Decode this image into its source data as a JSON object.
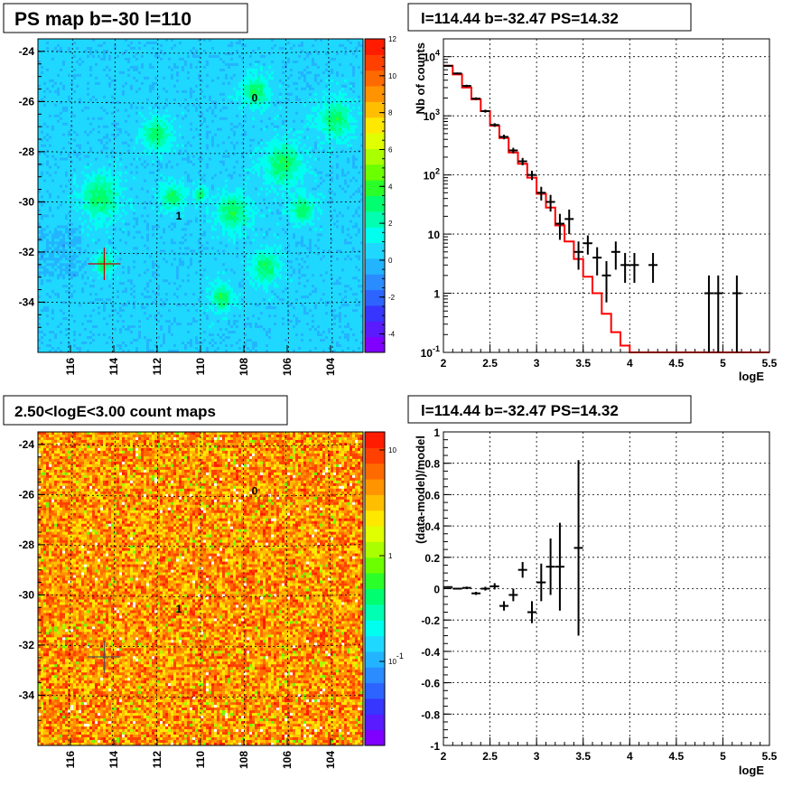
{
  "panels": {
    "tl_title": "PS map b=-30 l=110",
    "tr_title": "l=114.44 b=-32.47 PS=14.32",
    "bl_title": "2.50<logE<3.00 count maps",
    "br_title": "l=114.44 b=-32.47 PS=14.32"
  },
  "map_labels": [
    "0",
    "1"
  ],
  "colors": {
    "model_line": "#ff0000",
    "data": "#000000"
  },
  "chart_data": [
    {
      "type": "heatmap",
      "name_printed": "PS map b=-30 l=110",
      "x_ticks": [
        "116",
        "114",
        "112",
        "110",
        "108",
        "106",
        "104"
      ],
      "y_ticks": [
        "-24",
        "-26",
        "-28",
        "-30",
        "-32",
        "-34"
      ],
      "xlim": [
        117.5,
        102.5
      ],
      "ylim": [
        -36,
        -23.5
      ],
      "colorbar_ticks": [
        "12",
        "10",
        "8",
        "6",
        "4",
        "2",
        "0",
        "-2",
        "-4"
      ],
      "colorbar_range": [
        -5,
        12
      ],
      "source_marker": {
        "l": 114.44,
        "b": -32.47
      },
      "labels": [
        {
          "text": "0",
          "l": 107.5,
          "b": -26.0
        },
        {
          "text": "1",
          "l": 111.0,
          "b": -30.7
        }
      ],
      "grid": true
    },
    {
      "type": "line",
      "name_printed": "l=114.44 b=-32.47 PS=14.32",
      "xlabel": "logE",
      "ylabel": "Nb of counts",
      "xlim": [
        2,
        5.5
      ],
      "ylim": [
        0.1,
        20000
      ],
      "log_y": true,
      "x_ticks": [
        "2",
        "2.5",
        "3",
        "3.5",
        "4",
        "4.5",
        "5",
        "5.5"
      ],
      "y_ticks": [
        "10^4",
        "10^3",
        "10^2",
        "10",
        "1",
        "10^-1"
      ],
      "grid": true,
      "series": [
        {
          "kind": "step",
          "color": "#ff0000",
          "bin_edges": [
            2.0,
            2.1,
            2.2,
            2.3,
            2.4,
            2.5,
            2.6,
            2.7,
            2.8,
            2.9,
            3.0,
            3.1,
            3.2,
            3.3,
            3.4,
            3.5,
            3.6,
            3.7,
            3.8,
            3.9,
            4.0,
            5.5
          ],
          "values": [
            7000,
            5000,
            3000,
            1900,
            1200,
            680,
            420,
            240,
            155,
            90,
            48,
            28,
            14,
            7.5,
            3.8,
            1.9,
            1.0,
            0.45,
            0.22,
            0.13,
            0.1
          ]
        },
        {
          "kind": "points",
          "color": "#000000",
          "x": [
            2.05,
            2.15,
            2.25,
            2.35,
            2.45,
            2.55,
            2.65,
            2.75,
            2.85,
            2.95,
            3.05,
            3.15,
            3.25,
            3.35,
            3.45,
            3.55,
            3.65,
            3.75,
            3.85,
            3.95,
            4.05,
            4.25,
            4.85,
            4.95,
            5.15
          ],
          "y": [
            7000,
            5200,
            3200,
            1950,
            1200,
            700,
            440,
            260,
            170,
            100,
            50,
            35,
            15,
            18,
            5,
            7,
            4,
            2,
            5,
            3,
            3,
            3,
            1,
            1,
            1
          ],
          "y_low": [
            6800,
            5000,
            3050,
            1850,
            1130,
            650,
            400,
            232,
            146,
            82,
            37,
            24,
            8,
            10,
            2.5,
            4.5,
            2,
            0.7,
            2.5,
            1.5,
            1.5,
            1.5,
            0.1,
            0.1,
            0.1
          ],
          "y_high": [
            7200,
            5400,
            3350,
            2050,
            1270,
            750,
            480,
            288,
            194,
            118,
            63,
            46,
            22,
            26,
            7.5,
            9.5,
            6,
            3.5,
            7.5,
            4.8,
            4.8,
            4.8,
            2,
            2,
            2
          ]
        }
      ]
    },
    {
      "type": "heatmap",
      "name_printed": "2.50<logE<3.00 count maps",
      "x_ticks": [
        "116",
        "114",
        "112",
        "110",
        "108",
        "106",
        "104"
      ],
      "y_ticks": [
        "-24",
        "-26",
        "-28",
        "-30",
        "-32",
        "-34"
      ],
      "xlim": [
        117.5,
        102.5
      ],
      "ylim": [
        -36,
        -23.5
      ],
      "colorbar_ticks": [
        "10",
        "1",
        "10^-1"
      ],
      "colorbar_log": true,
      "source_marker": {
        "l": 114.44,
        "b": -32.47
      },
      "labels": [
        {
          "text": "0",
          "l": 107.5,
          "b": -26.0
        },
        {
          "text": "1",
          "l": 111.0,
          "b": -30.7
        }
      ],
      "grid": true
    },
    {
      "type": "scatter",
      "name_printed": "l=114.44 b=-32.47 PS=14.32",
      "xlabel": "logE",
      "ylabel": "(data-model)/model",
      "xlim": [
        2,
        5.5
      ],
      "ylim": [
        -1,
        1
      ],
      "x_ticks": [
        "2",
        "2.5",
        "3",
        "3.5",
        "4",
        "4.5",
        "5",
        "5.5"
      ],
      "y_ticks": [
        "1",
        "0.8",
        "0.6",
        "0.4",
        "0.2",
        "0",
        "-0.2",
        "-0.4",
        "-0.6",
        "-0.8",
        "-1"
      ],
      "grid": true,
      "series": [
        {
          "kind": "points",
          "color": "#000000",
          "x": [
            2.05,
            2.15,
            2.25,
            2.35,
            2.45,
            2.55,
            2.65,
            2.75,
            2.85,
            2.95,
            3.05,
            3.15,
            3.25,
            3.45
          ],
          "y": [
            0.01,
            0.0,
            0.005,
            -0.03,
            0.0,
            0.015,
            -0.11,
            -0.04,
            0.12,
            -0.15,
            0.04,
            0.14,
            0.14,
            0.26
          ],
          "y_err": [
            0.005,
            0.005,
            0.008,
            0.01,
            0.012,
            0.02,
            0.03,
            0.04,
            0.05,
            0.07,
            0.12,
            0.18,
            0.28,
            0.56
          ]
        }
      ]
    }
  ]
}
